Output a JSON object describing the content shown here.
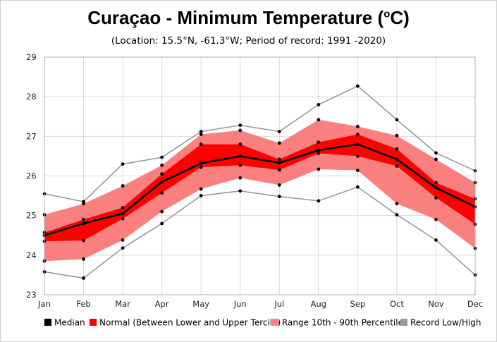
{
  "chart_data": {
    "type": "area",
    "title_main": "Curaçao - Minimum Temperature (",
    "title_sup": "o",
    "title_end": "C)",
    "subtitle": "(Location: 15.5°N, -61.3°W; Period of record: 1991 -2020)",
    "categories": [
      "Jan",
      "Feb",
      "Mar",
      "Apr",
      "May",
      "Jun",
      "Jul",
      "Aug",
      "Sep",
      "Oct",
      "Nov",
      "Dec"
    ],
    "ylim": [
      23,
      29
    ],
    "yticks": [
      "23",
      "24",
      "25",
      "26",
      "27",
      "28",
      "29"
    ],
    "grid": true,
    "legend_position": "bottom",
    "series": [
      {
        "name": "Median",
        "role": "median",
        "color": "#000000",
        "values": [
          24.5,
          24.8,
          25.05,
          25.85,
          26.32,
          26.5,
          26.33,
          26.65,
          26.8,
          26.42,
          25.7,
          25.22
        ]
      },
      {
        "name": "Normal (Between Lower and Upper Tercile)",
        "role": "tercile_band",
        "color": "#ff0000",
        "low": [
          24.35,
          24.37,
          24.92,
          25.57,
          26.22,
          26.27,
          26.15,
          26.57,
          26.5,
          26.25,
          25.45,
          24.78
        ],
        "high": [
          24.57,
          24.9,
          25.2,
          26.05,
          26.8,
          26.8,
          26.42,
          26.85,
          27.05,
          26.68,
          25.83,
          25.42
        ]
      },
      {
        "name": "Range 10th - 90th Percentile",
        "role": "percentile_band",
        "color": "#fa8080",
        "low": [
          23.85,
          23.9,
          24.38,
          25.1,
          25.67,
          25.95,
          25.77,
          26.17,
          26.14,
          25.3,
          24.9,
          24.17
        ],
        "high": [
          25.02,
          25.3,
          25.75,
          26.27,
          27.05,
          27.15,
          26.83,
          27.42,
          27.25,
          27.02,
          26.42,
          25.83
        ]
      },
      {
        "name": "Record Low/High",
        "role": "record",
        "color": "#999999",
        "low": [
          23.58,
          23.42,
          24.18,
          24.8,
          25.5,
          25.62,
          25.48,
          25.37,
          25.72,
          25.02,
          24.38,
          23.5
        ],
        "high": [
          25.55,
          25.35,
          26.3,
          26.47,
          27.12,
          27.28,
          27.12,
          27.8,
          28.27,
          27.42,
          26.58,
          26.13
        ]
      }
    ],
    "legend": [
      {
        "label": "Median",
        "color": "#000000"
      },
      {
        "label": "Normal (Between Lower and Upper Tercile)",
        "color": "#ff0000"
      },
      {
        "label": "Range 10th - 90th Percentile",
        "color": "#fa8080"
      },
      {
        "label": "Record Low/High",
        "color": "#999999"
      }
    ]
  }
}
